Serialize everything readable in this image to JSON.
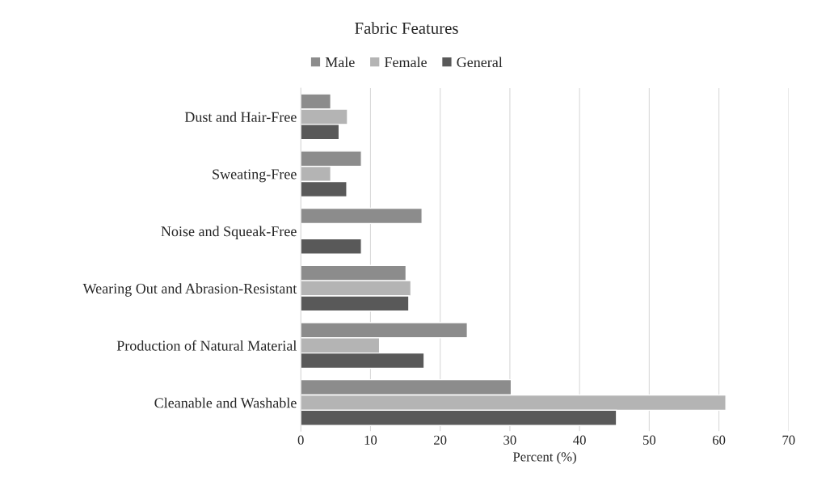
{
  "chart_data": {
    "type": "bar",
    "orientation": "horizontal",
    "title": "Fabric Features",
    "xlabel": "Percent (%)",
    "categories": [
      "Dust and Hair-Free",
      "Sweating-Free",
      "Noise and Squeak-Free",
      "Wearing Out and Abrasion-Resistant",
      "Production of Natural Material",
      "Cleanable and Washable"
    ],
    "series": [
      {
        "name": "Male",
        "color": "#8c8c8c",
        "values": [
          4.3,
          8.7,
          17.4,
          15.1,
          23.9,
          30.2
        ]
      },
      {
        "name": "Female",
        "color": "#b4b4b4",
        "values": [
          6.7,
          4.3,
          null,
          15.8,
          11.3,
          61.0
        ]
      },
      {
        "name": "General",
        "color": "#595959",
        "values": [
          5.5,
          6.6,
          8.7,
          15.5,
          17.7,
          45.3
        ]
      }
    ],
    "xlim": [
      0,
      70
    ],
    "xticks": [
      0,
      10,
      20,
      30,
      40,
      50,
      60,
      70
    ],
    "grid": "x",
    "legend": "top"
  }
}
